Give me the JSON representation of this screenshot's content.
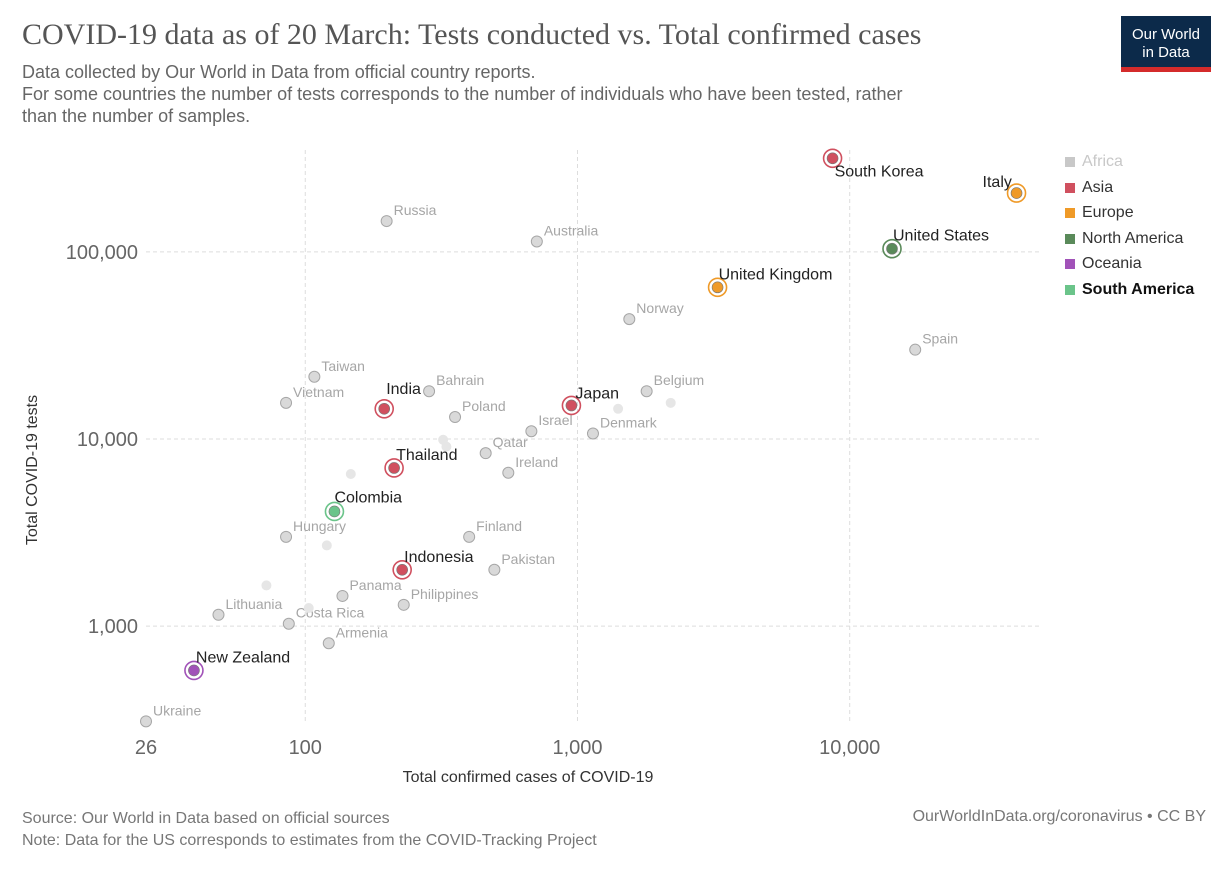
{
  "header": {
    "title": "COVID-19 data as of 20 March: Tests conducted vs. Total confirmed cases",
    "subtitle_line1": "Data collected by Our World in Data from official country reports.",
    "subtitle_line2": "For some countries the number of tests corresponds to the number of individuals who have been tested, rather",
    "subtitle_line3": "than the number of samples."
  },
  "logo": {
    "line1": "Our World",
    "line2": "in Data"
  },
  "footer": {
    "source": "Source: Our World in Data based on official sources",
    "note": "Note: Data for the US corresponds to estimates from the COVID-Tracking Project",
    "credit": "OurWorldInData.org/coronavirus • CC BY"
  },
  "chart_data": {
    "type": "scatter",
    "xlabel": "Total confirmed cases of COVID-19",
    "ylabel": "Total COVID-19 tests",
    "x_scale": "log",
    "y_scale": "log",
    "xlim": [
      26,
      50000
    ],
    "ylim": [
      300,
      350000
    ],
    "x_ticks": [
      26,
      100,
      1000,
      10000
    ],
    "x_tick_labels": [
      "26",
      "100",
      "1,000",
      "10,000"
    ],
    "y_ticks": [
      1000,
      10000,
      100000
    ],
    "y_tick_labels": [
      "1,000",
      "10,000",
      "100,000"
    ],
    "grid": true,
    "legend_position": "right",
    "legend": [
      {
        "name": "Africa",
        "color": "#c8c8c8",
        "style": "dim"
      },
      {
        "name": "Asia",
        "color": "#d0505f",
        "style": "normal"
      },
      {
        "name": "Europe",
        "color": "#ef9a28",
        "style": "normal"
      },
      {
        "name": "North America",
        "color": "#5a8a5a",
        "style": "normal"
      },
      {
        "name": "Oceania",
        "color": "#a152b8",
        "style": "normal"
      },
      {
        "name": "South America",
        "color": "#6bc48a",
        "style": "bold"
      }
    ],
    "highlight_colors": {
      "Asia": "#d0505f",
      "Europe": "#ef9a28",
      "North America": "#5a8a5a",
      "Oceania": "#a152b8",
      "South America": "#6bc48a"
    },
    "points": [
      {
        "label": "South Korea",
        "x": 8650,
        "y": 316000,
        "region": "Asia",
        "highlight": true
      },
      {
        "label": "Italy",
        "x": 41000,
        "y": 206000,
        "region": "Europe",
        "highlight": true
      },
      {
        "label": "United States",
        "x": 14300,
        "y": 103900,
        "region": "North America",
        "highlight": true
      },
      {
        "label": "United Kingdom",
        "x": 3270,
        "y": 64600,
        "region": "Europe",
        "highlight": true
      },
      {
        "label": "India",
        "x": 195,
        "y": 14500,
        "region": "Asia",
        "highlight": true
      },
      {
        "label": "Japan",
        "x": 950,
        "y": 15100,
        "region": "Asia",
        "highlight": true
      },
      {
        "label": "Thailand",
        "x": 212,
        "y": 7000,
        "region": "Asia",
        "highlight": true
      },
      {
        "label": "Colombia",
        "x": 128,
        "y": 4100,
        "region": "South America",
        "highlight": true
      },
      {
        "label": "Indonesia",
        "x": 227,
        "y": 2000,
        "region": "Asia",
        "highlight": true
      },
      {
        "label": "New Zealand",
        "x": 39,
        "y": 580,
        "region": "Oceania",
        "highlight": true
      },
      {
        "label": "Russia",
        "x": 199,
        "y": 146000,
        "region": "Europe",
        "highlight": false
      },
      {
        "label": "Australia",
        "x": 709,
        "y": 113600,
        "region": "Oceania",
        "highlight": false
      },
      {
        "label": "Norway",
        "x": 1550,
        "y": 43700,
        "region": "Europe",
        "highlight": false
      },
      {
        "label": "Spain",
        "x": 17400,
        "y": 30000,
        "region": "Europe",
        "highlight": false
      },
      {
        "label": "Taiwan",
        "x": 108,
        "y": 21500,
        "region": "Asia",
        "highlight": false
      },
      {
        "label": "Bahrain",
        "x": 285,
        "y": 18000,
        "region": "Asia",
        "highlight": false
      },
      {
        "label": "Vietnam",
        "x": 85,
        "y": 15600,
        "region": "Asia",
        "highlight": false
      },
      {
        "label": "Belgium",
        "x": 1795,
        "y": 18000,
        "region": "Europe",
        "highlight": false
      },
      {
        "label": "Poland",
        "x": 355,
        "y": 13100,
        "region": "Europe",
        "highlight": false
      },
      {
        "label": "Israel",
        "x": 677,
        "y": 11000,
        "region": "Asia",
        "highlight": false
      },
      {
        "label": "Denmark",
        "x": 1140,
        "y": 10700,
        "region": "Europe",
        "highlight": false
      },
      {
        "label": "Qatar",
        "x": 460,
        "y": 8400,
        "region": "Asia",
        "highlight": false
      },
      {
        "label": "Ireland",
        "x": 557,
        "y": 6600,
        "region": "Europe",
        "highlight": false
      },
      {
        "label": "Hungary",
        "x": 85,
        "y": 3000,
        "region": "Europe",
        "highlight": false
      },
      {
        "label": "Finland",
        "x": 400,
        "y": 3000,
        "region": "Europe",
        "highlight": false
      },
      {
        "label": "Pakistan",
        "x": 495,
        "y": 2000,
        "region": "Asia",
        "highlight": false
      },
      {
        "label": "Panama",
        "x": 137,
        "y": 1450,
        "region": "North America",
        "highlight": false
      },
      {
        "label": "Philippines",
        "x": 230,
        "y": 1300,
        "region": "Asia",
        "highlight": false
      },
      {
        "label": "Lithuania",
        "x": 48,
        "y": 1150,
        "region": "Europe",
        "highlight": false
      },
      {
        "label": "Costa Rica",
        "x": 87,
        "y": 1030,
        "region": "North America",
        "highlight": false
      },
      {
        "label": "Armenia",
        "x": 122,
        "y": 810,
        "region": "Asia",
        "highlight": false
      },
      {
        "label": "Ukraine",
        "x": 26,
        "y": 310,
        "region": "Europe",
        "highlight": false
      },
      {
        "label": "",
        "x": 1410,
        "y": 14500,
        "region": "Europe",
        "highlight": false
      },
      {
        "label": "",
        "x": 2200,
        "y": 15600,
        "region": "Europe",
        "highlight": false
      },
      {
        "label": "",
        "x": 321,
        "y": 9900,
        "region": "Europe",
        "highlight": false
      },
      {
        "label": "",
        "x": 330,
        "y": 9100,
        "region": "Europe",
        "highlight": false
      },
      {
        "label": "",
        "x": 147,
        "y": 6500,
        "region": "Asia",
        "highlight": false
      },
      {
        "label": "",
        "x": 120,
        "y": 2700,
        "region": "Europe",
        "highlight": false
      },
      {
        "label": "",
        "x": 72,
        "y": 1650,
        "region": "Europe",
        "highlight": false
      },
      {
        "label": "",
        "x": 103,
        "y": 1250,
        "region": "Europe",
        "highlight": false
      }
    ]
  }
}
